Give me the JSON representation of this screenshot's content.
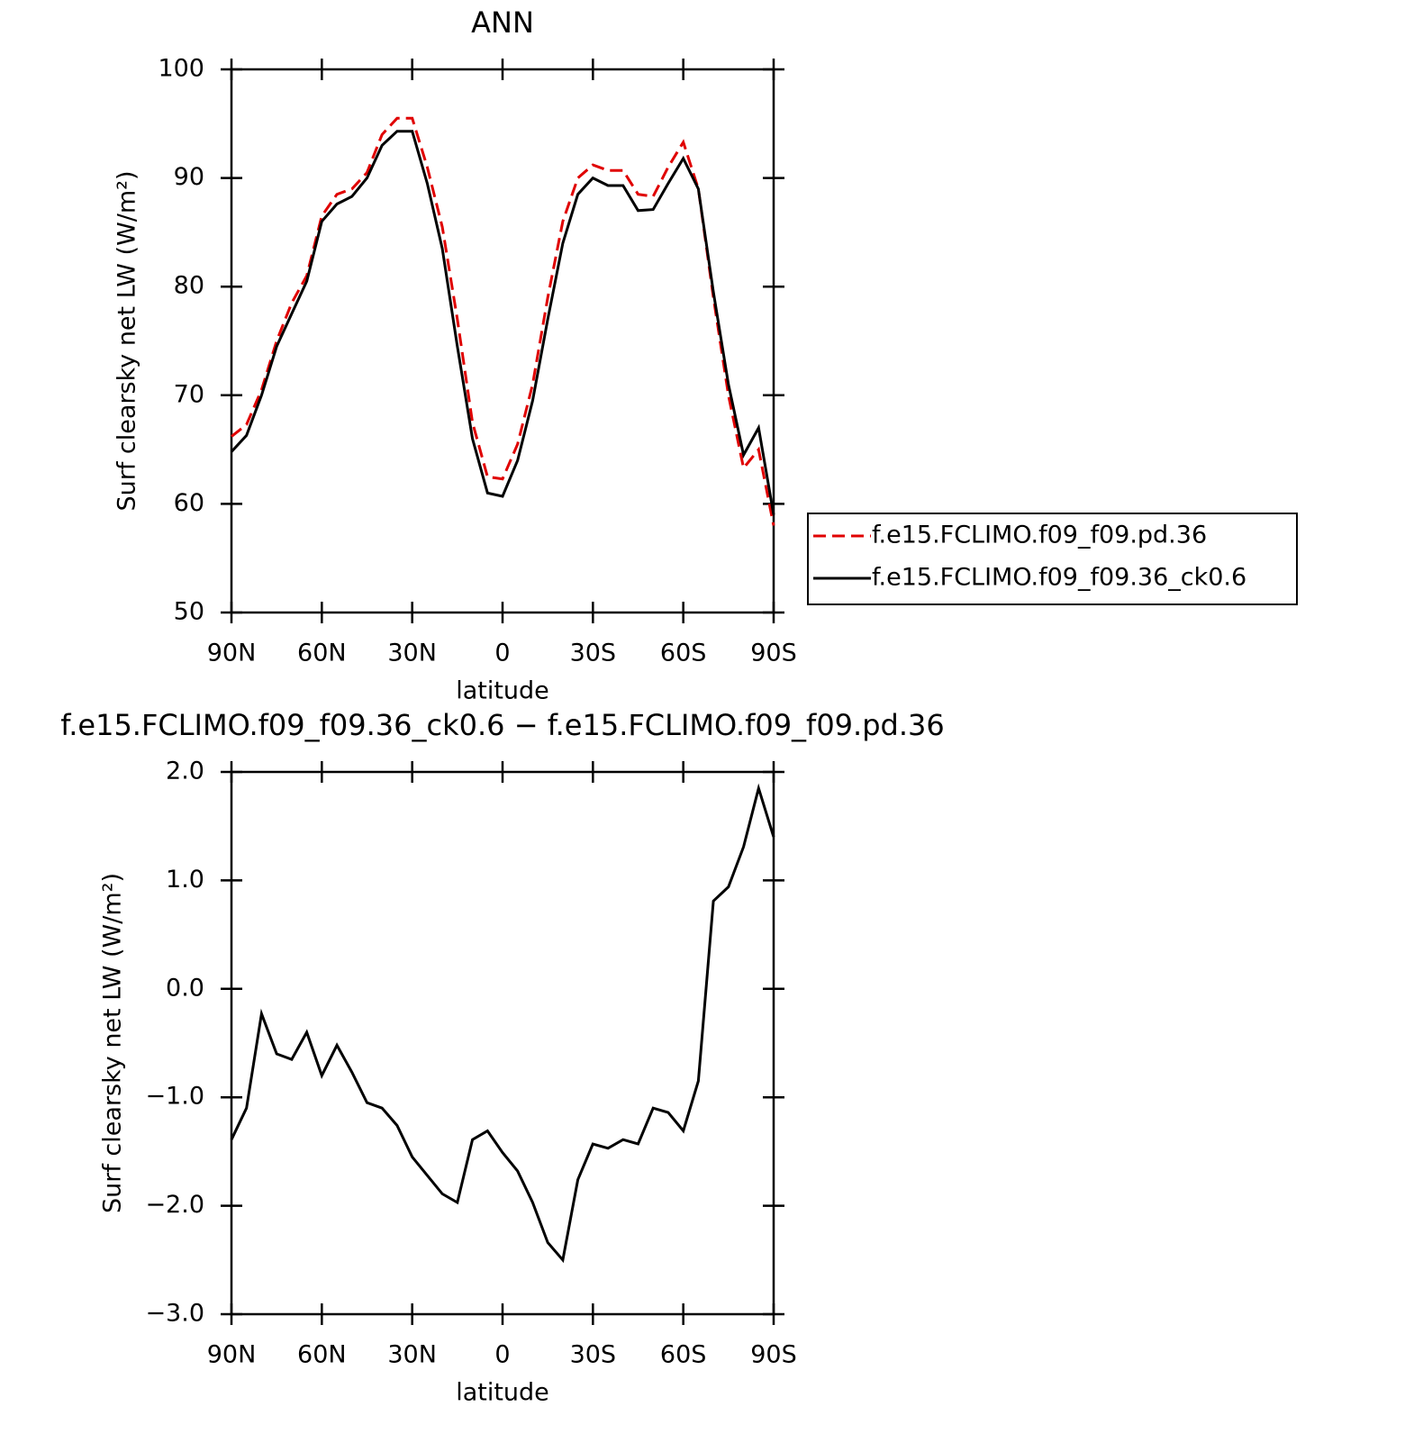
{
  "chart_data": [
    {
      "type": "line",
      "title": "ANN",
      "xlabel": "latitude",
      "ylabel": "Surf clearsky net LW (W/m²)",
      "x": [
        90,
        85,
        80,
        75,
        70,
        65,
        60,
        55,
        50,
        45,
        40,
        35,
        30,
        25,
        20,
        15,
        10,
        5,
        0,
        -5,
        -10,
        -15,
        -20,
        -25,
        -30,
        -35,
        -40,
        -45,
        -50,
        -55,
        -60,
        -65,
        -70,
        -75,
        -80,
        -85,
        -90
      ],
      "xlim": [
        90,
        -90
      ],
      "xticks": [
        {
          "value": 90,
          "label": "90N"
        },
        {
          "value": 60,
          "label": "60N"
        },
        {
          "value": 30,
          "label": "30N"
        },
        0,
        {
          "value": -30,
          "label": "30S"
        },
        {
          "value": -60,
          "label": "60S"
        },
        {
          "value": -90,
          "label": "90S"
        }
      ],
      "ylim": [
        50,
        100
      ],
      "yticks": [
        50,
        60,
        70,
        80,
        90,
        100
      ],
      "legend": "right",
      "series": [
        {
          "name": "f.e15.FCLIMO.f09_f09.pd.36",
          "color": "#e00000",
          "linestyle": "dashed",
          "values": [
            66.2,
            67.3,
            70.5,
            75,
            78.5,
            81,
            86.5,
            88.5,
            89,
            90.5,
            94,
            95.5,
            95.5,
            91,
            85.5,
            77,
            67.5,
            62.5,
            62.3,
            65.5,
            71,
            79,
            86,
            90,
            91.2,
            90.7,
            90.7,
            88.5,
            88.3,
            91,
            93.3,
            89,
            79,
            70,
            63.3,
            65,
            58
          ]
        },
        {
          "name": "f.e15.FCLIMO.f09_f09.36_ck0.6",
          "color": "#000000",
          "linestyle": "solid",
          "values": [
            64.8,
            66.3,
            70,
            74.5,
            77.5,
            80.5,
            86,
            87.6,
            88.3,
            90,
            93,
            94.3,
            94.3,
            89.5,
            83.5,
            74.5,
            66,
            61,
            60.7,
            64,
            69.5,
            77,
            84,
            88.5,
            90,
            89.3,
            89.3,
            87,
            87.1,
            89.5,
            91.8,
            89,
            79.5,
            71,
            64.5,
            67,
            59
          ]
        }
      ]
    },
    {
      "type": "line",
      "title": "f.e15.FCLIMO.f09_f09.36_ck0.6 − f.e15.FCLIMO.f09_f09.pd.36",
      "xlabel": "latitude",
      "ylabel": "Surf clearsky net LW (W/m²)",
      "x": [
        90,
        85,
        80,
        75,
        70,
        65,
        60,
        55,
        50,
        45,
        40,
        35,
        30,
        25,
        20,
        15,
        10,
        5,
        0,
        -5,
        -10,
        -15,
        -20,
        -25,
        -30,
        -35,
        -40,
        -45,
        -50,
        -55,
        -60,
        -65,
        -70,
        -75,
        -80,
        -85,
        -90
      ],
      "xlim": [
        90,
        -90
      ],
      "xticks": [
        {
          "value": 90,
          "label": "90N"
        },
        {
          "value": 60,
          "label": "60N"
        },
        {
          "value": 30,
          "label": "30N"
        },
        0,
        {
          "value": -30,
          "label": "30S"
        },
        {
          "value": -60,
          "label": "60S"
        },
        {
          "value": -90,
          "label": "90S"
        }
      ],
      "ylim": [
        -3,
        2
      ],
      "yticks": [
        {
          "value": -3,
          "label": "−3.0"
        },
        {
          "value": -2,
          "label": "−2.0"
        },
        {
          "value": -1,
          "label": "−1.0"
        },
        {
          "value": 0,
          "label": "0.0"
        },
        {
          "value": 1,
          "label": "1.0"
        },
        {
          "value": 2,
          "label": "2.0"
        }
      ],
      "series": [
        {
          "color": "#000000",
          "linestyle": "solid",
          "values": [
            -1.39,
            -1.1,
            -0.23,
            -0.6,
            -0.65,
            -0.4,
            -0.8,
            -0.52,
            -0.77,
            -1.05,
            -1.1,
            -1.26,
            -1.55,
            -1.72,
            -1.89,
            -1.97,
            -1.39,
            -1.31,
            -1.51,
            -1.68,
            -1.97,
            -2.34,
            -2.5,
            -1.76,
            -1.43,
            -1.47,
            -1.39,
            -1.43,
            -1.1,
            -1.14,
            -1.31,
            -0.85,
            0.81,
            0.94,
            1.31,
            1.85,
            1.4
          ]
        }
      ]
    }
  ]
}
